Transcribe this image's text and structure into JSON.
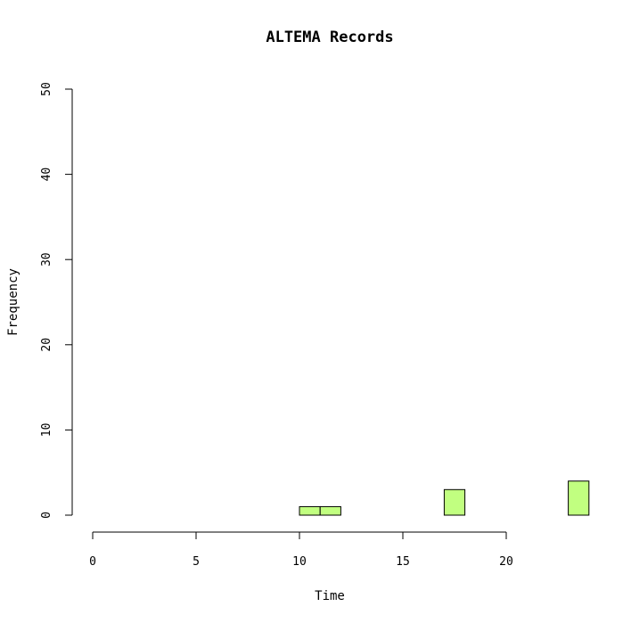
{
  "chart_data": {
    "type": "bar",
    "title": "ALTEMA Records",
    "xlabel": "Time",
    "ylabel": "Frequency",
    "xlim": [
      0,
      24
    ],
    "ylim": [
      0,
      50
    ],
    "x_ticks": [
      0,
      5,
      10,
      15,
      20
    ],
    "y_ticks": [
      0,
      10,
      20,
      30,
      40,
      50
    ],
    "bin_width": 1,
    "bins": [
      {
        "start": 0,
        "count": 0
      },
      {
        "start": 1,
        "count": 0
      },
      {
        "start": 2,
        "count": 0
      },
      {
        "start": 3,
        "count": 0
      },
      {
        "start": 4,
        "count": 0
      },
      {
        "start": 5,
        "count": 0
      },
      {
        "start": 6,
        "count": 0
      },
      {
        "start": 7,
        "count": 0
      },
      {
        "start": 8,
        "count": 0
      },
      {
        "start": 9,
        "count": 0
      },
      {
        "start": 10,
        "count": 1
      },
      {
        "start": 11,
        "count": 1
      },
      {
        "start": 12,
        "count": 0
      },
      {
        "start": 13,
        "count": 0
      },
      {
        "start": 14,
        "count": 0
      },
      {
        "start": 15,
        "count": 0
      },
      {
        "start": 16,
        "count": 0
      },
      {
        "start": 17,
        "count": 3
      },
      {
        "start": 18,
        "count": 0
      },
      {
        "start": 19,
        "count": 0
      },
      {
        "start": 20,
        "count": 0
      },
      {
        "start": 21,
        "count": 0
      },
      {
        "start": 22,
        "count": 0
      },
      {
        "start": 23,
        "count": 4
      }
    ],
    "bar_color": "#c1ff80",
    "grid": false
  }
}
